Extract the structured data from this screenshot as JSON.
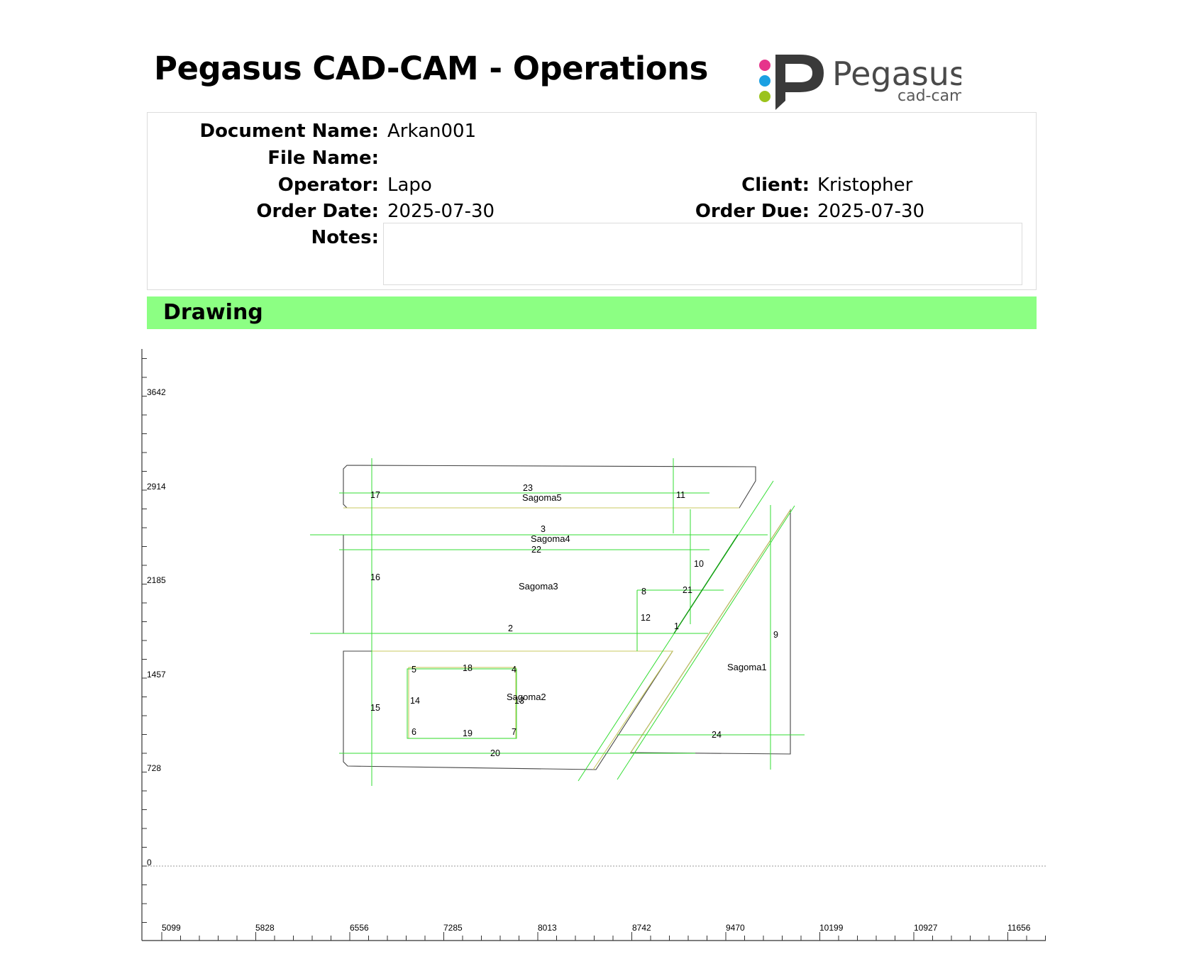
{
  "header": {
    "title": "Pegasus CAD-CAM - Operations",
    "logo_text": "Pegasus",
    "logo_subtext": "cad-cam",
    "logo_dot_colors": [
      "#e6358b",
      "#1ba0e2",
      "#9bc31c"
    ]
  },
  "info": {
    "document_name_label": "Document Name:",
    "document_name": "Arkan001",
    "file_name_label": "File Name:",
    "file_name": "",
    "operator_label": "Operator:",
    "operator": "Lapo",
    "client_label": "Client:",
    "client": "Kristopher",
    "order_date_label": "Order Date:",
    "order_date": "2025-07-30",
    "order_due_label": "Order Due:",
    "order_due": "2025-07-30",
    "notes_label": "Notes:",
    "notes": ""
  },
  "section": {
    "title": "Drawing",
    "color": "#8cff83"
  },
  "drawing": {
    "y_ticks": [
      "3642",
      "2914",
      "2185",
      "1457",
      "728",
      "0"
    ],
    "x_ticks": [
      "5099",
      "5828",
      "6556",
      "7285",
      "8013",
      "8742",
      "9470",
      "10199",
      "10927",
      "11656"
    ],
    "shape_labels": [
      "Sagoma5",
      "Sagoma4",
      "Sagoma3",
      "Sagoma2",
      "Sagoma1"
    ],
    "line_numbers": [
      "1",
      "2",
      "3",
      "4",
      "5",
      "6",
      "7",
      "8",
      "9",
      "10",
      "11",
      "12",
      "13",
      "14",
      "15",
      "16",
      "17",
      "18",
      "19",
      "20",
      "21",
      "22",
      "23",
      "24"
    ],
    "colors": {
      "outline": "#444444",
      "cut": "#33dd33",
      "path": "#c8c860",
      "axis": "#333333"
    }
  }
}
